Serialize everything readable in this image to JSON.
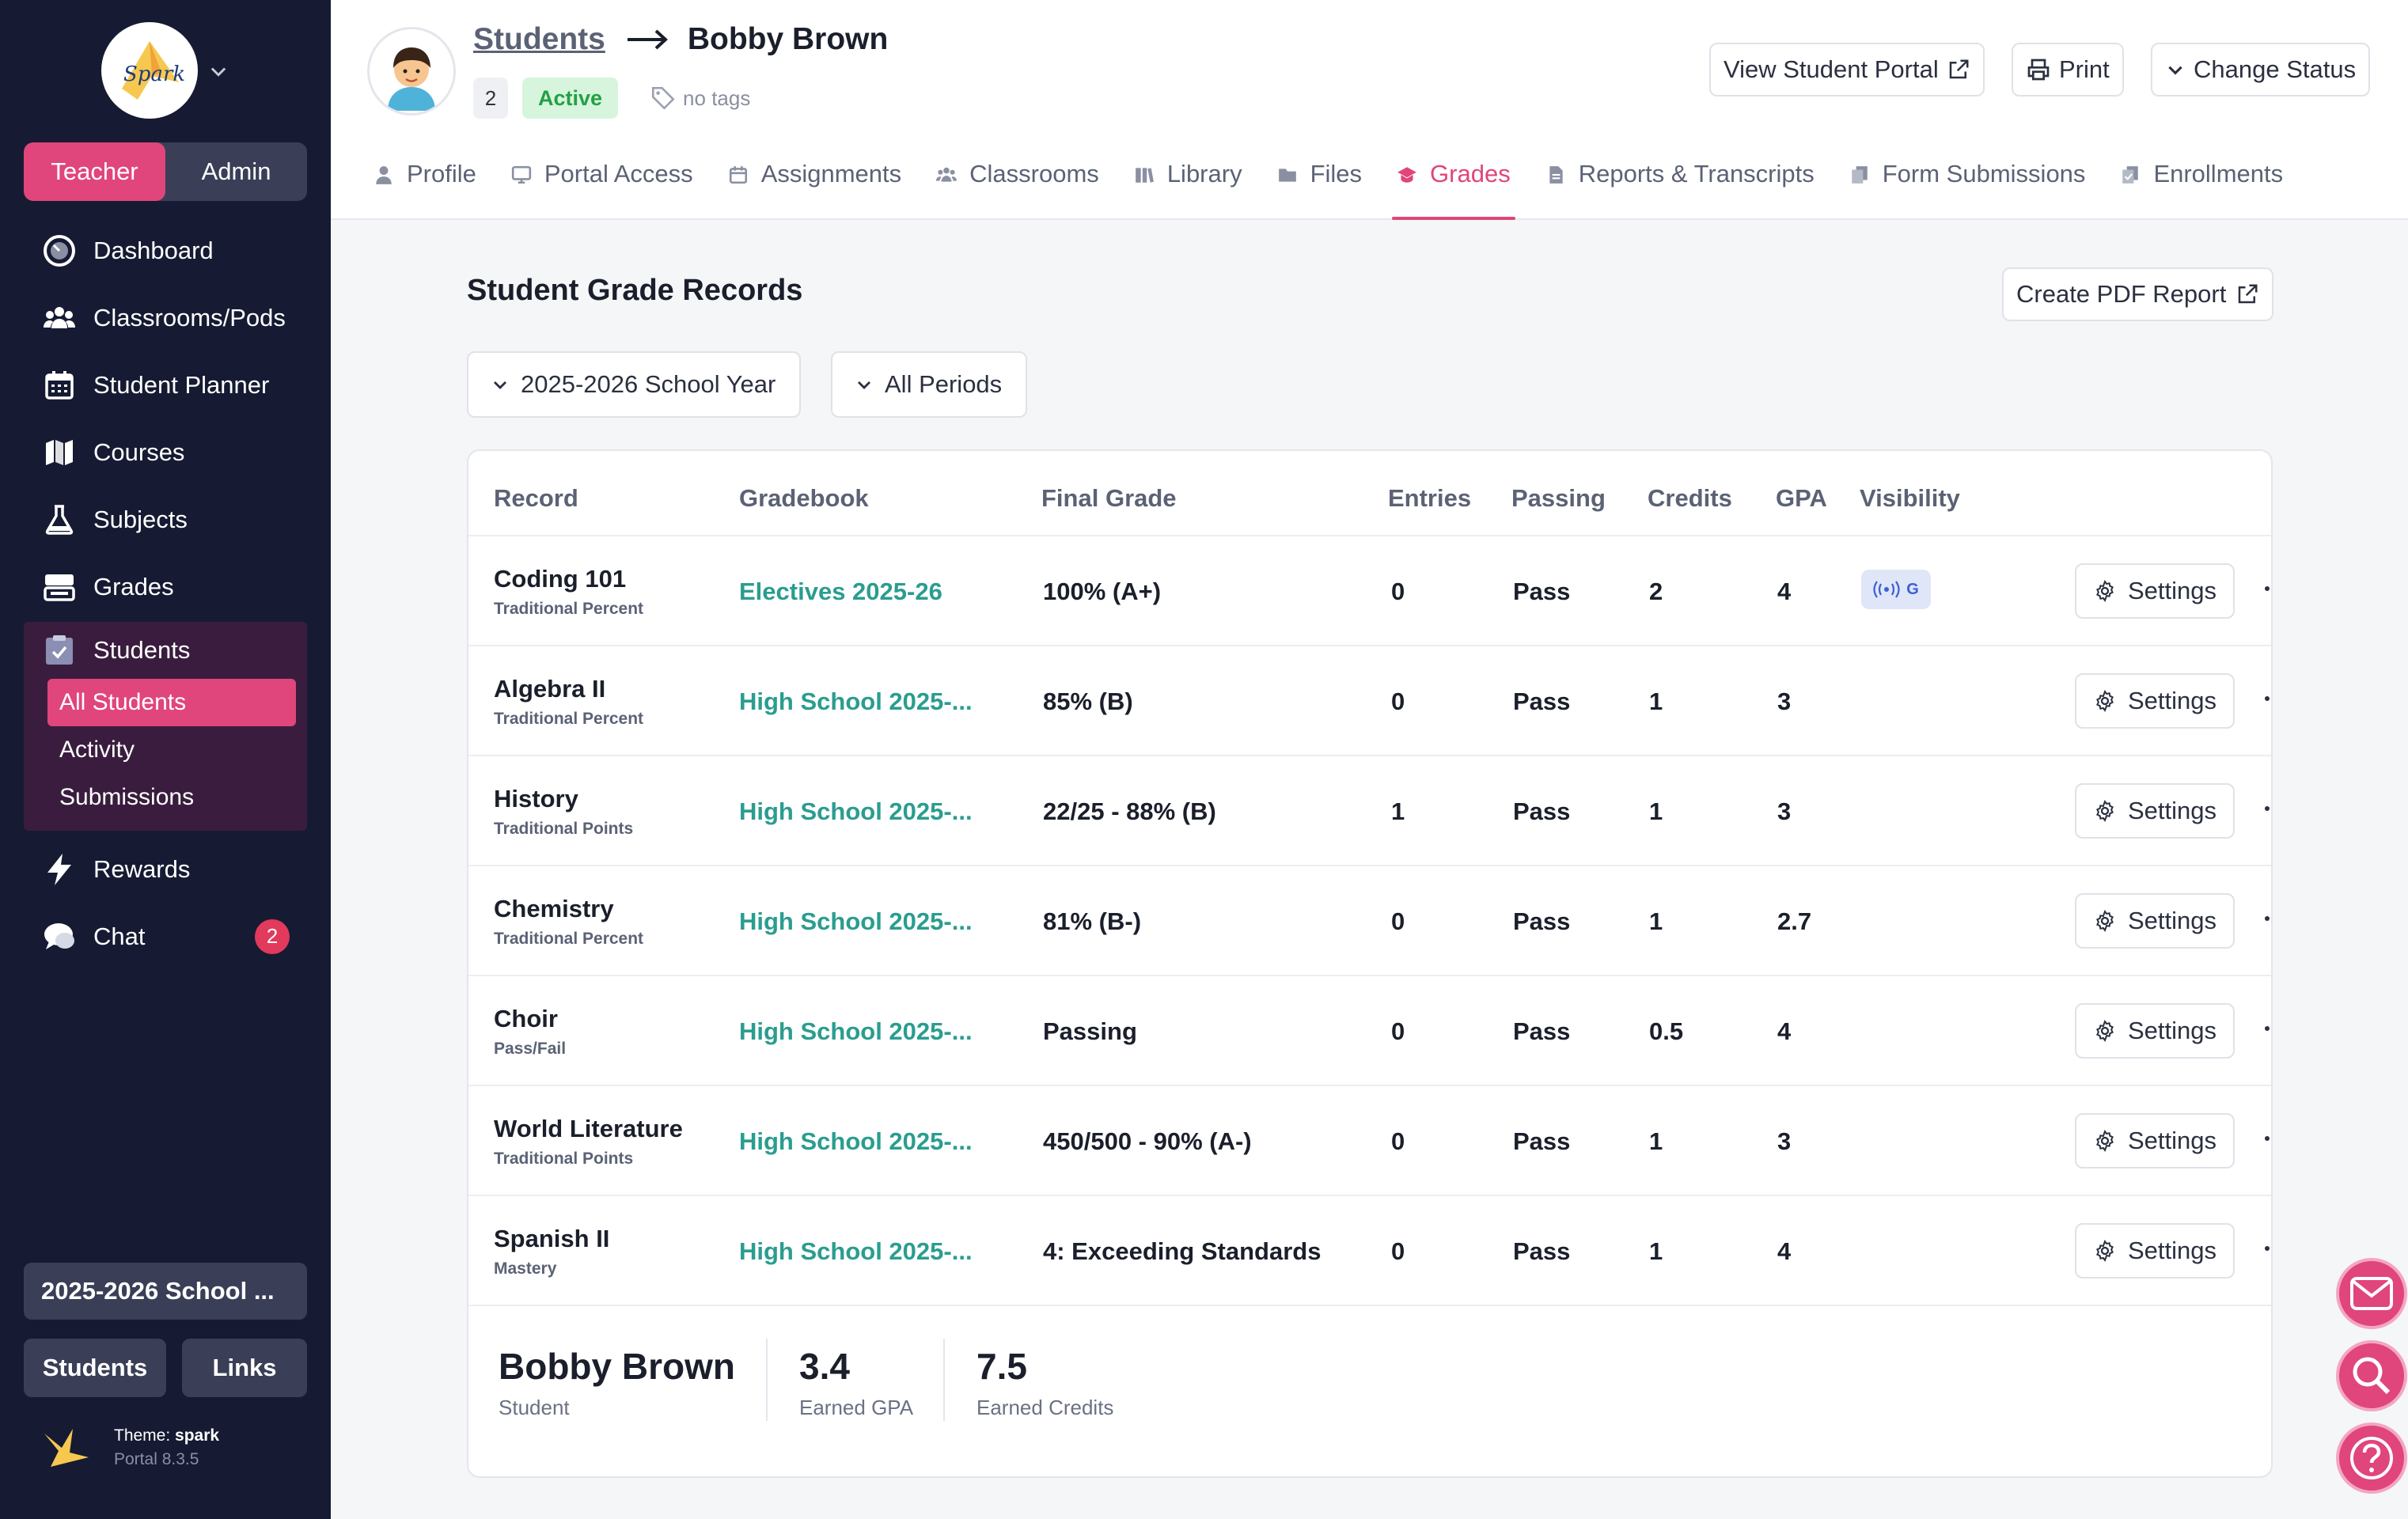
{
  "sidebar": {
    "logo_text": "Spark",
    "roles": [
      "Teacher",
      "Admin"
    ],
    "nav": [
      {
        "label": "Dashboard",
        "icon": "dashboard-icon"
      },
      {
        "label": "Classrooms/Pods",
        "icon": "people-icon"
      },
      {
        "label": "Student Planner",
        "icon": "calendar-icon"
      },
      {
        "label": "Courses",
        "icon": "map-icon"
      },
      {
        "label": "Subjects",
        "icon": "flask-icon"
      },
      {
        "label": "Grades",
        "icon": "grades-icon"
      }
    ],
    "students_group": {
      "label": "Students",
      "items": [
        "All Students",
        "Activity",
        "Submissions"
      ]
    },
    "rewards_label": "Rewards",
    "chat_label": "Chat",
    "chat_badge": "2",
    "year_button": "2025-2026 School ...",
    "students_button": "Students",
    "links_button": "Links",
    "theme_label": "Theme:",
    "theme_name": "spark",
    "portal_version": "Portal 8.3.5"
  },
  "header": {
    "breadcrumb_link": "Students",
    "student_name": "Bobby Brown",
    "count": "2",
    "status": "Active",
    "tags": "no tags",
    "buttons": {
      "view_portal": "View Student Portal",
      "print": "Print",
      "change_status": "Change Status"
    },
    "tabs": [
      "Profile",
      "Portal Access",
      "Assignments",
      "Classrooms",
      "Library",
      "Files",
      "Grades",
      "Reports & Transcripts",
      "Form Submissions",
      "Enrollments"
    ],
    "active_tab": "Grades"
  },
  "main": {
    "title": "Student Grade Records",
    "pdf_button": "Create PDF Report",
    "filters": {
      "year": "2025-2026 School Year",
      "period": "All Periods"
    },
    "columns": [
      "Record",
      "Gradebook",
      "Final Grade",
      "Entries",
      "Passing",
      "Credits",
      "GPA",
      "Visibility"
    ],
    "rows": [
      {
        "record": "Coding 101",
        "type": "Traditional Percent",
        "gradebook": "Electives 2025-26",
        "final": "100% (A+)",
        "entries": "0",
        "passing": "Pass",
        "credits": "2",
        "gpa": "4",
        "visibility": "G"
      },
      {
        "record": "Algebra II",
        "type": "Traditional Percent",
        "gradebook": "High School 2025-...",
        "final": "85% (B)",
        "entries": "0",
        "passing": "Pass",
        "credits": "1",
        "gpa": "3",
        "visibility": ""
      },
      {
        "record": "History",
        "type": "Traditional Points",
        "gradebook": "High School 2025-...",
        "final": "22/25 - 88% (B)",
        "entries": "1",
        "passing": "Pass",
        "credits": "1",
        "gpa": "3",
        "visibility": ""
      },
      {
        "record": "Chemistry",
        "type": "Traditional Percent",
        "gradebook": "High School 2025-...",
        "final": "81% (B-)",
        "entries": "0",
        "passing": "Pass",
        "credits": "1",
        "gpa": "2.7",
        "visibility": ""
      },
      {
        "record": "Choir",
        "type": "Pass/Fail",
        "gradebook": "High School 2025-...",
        "final": "Passing",
        "entries": "0",
        "passing": "Pass",
        "credits": "0.5",
        "gpa": "4",
        "visibility": ""
      },
      {
        "record": "World Literature",
        "type": "Traditional Points",
        "gradebook": "High School 2025-...",
        "final": "450/500 - 90% (A-)",
        "entries": "0",
        "passing": "Pass",
        "credits": "1",
        "gpa": "3",
        "visibility": ""
      },
      {
        "record": "Spanish II",
        "type": "Mastery",
        "gradebook": "High School 2025-...",
        "final": "4: Exceeding Standards",
        "entries": "0",
        "passing": "Pass",
        "credits": "1",
        "gpa": "4",
        "visibility": ""
      }
    ],
    "settings_label": "Settings",
    "summary": {
      "name": "Bobby Brown",
      "role": "Student",
      "gpa_value": "3.4",
      "gpa_label": "Earned GPA",
      "credits_value": "7.5",
      "credits_label": "Earned Credits"
    }
  },
  "colors": {
    "sidebar_bg": "#161b33",
    "accent_pink": "#e0457b",
    "teal_link": "#2a9d8f",
    "active_green": "#23a045"
  }
}
